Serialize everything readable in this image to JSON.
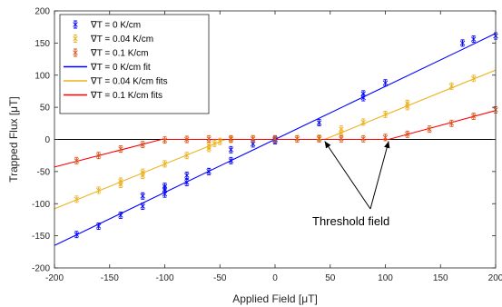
{
  "chart_data": {
    "type": "scatter",
    "xlabel": "Applied Field [μT]",
    "ylabel": "Trapped Flux [μT]",
    "xlim": [
      -200,
      200
    ],
    "ylim": [
      -200,
      200
    ],
    "xticks": [
      -200,
      -150,
      -100,
      -50,
      0,
      50,
      100,
      150,
      200
    ],
    "yticks": [
      -200,
      -150,
      -100,
      -50,
      0,
      50,
      100,
      150,
      200
    ],
    "grid": false,
    "legend_position": "top-left",
    "zero_line": true,
    "series": [
      {
        "name": "∇T = 0 K/cm",
        "kind": "points",
        "color": "#0000ff",
        "points": [
          [
            -180,
            -148
          ],
          [
            -160,
            -135
          ],
          [
            -140,
            -118
          ],
          [
            -120,
            -104
          ],
          [
            -120,
            -88
          ],
          [
            -100,
            -85
          ],
          [
            -100,
            -78
          ],
          [
            -100,
            -73
          ],
          [
            -80,
            -67
          ],
          [
            -80,
            -56
          ],
          [
            -60,
            -50
          ],
          [
            -40,
            -33
          ],
          [
            -40,
            -16
          ],
          [
            -20,
            -7
          ],
          [
            0,
            -2
          ],
          [
            0,
            0
          ],
          [
            40,
            26
          ],
          [
            80,
            65
          ],
          [
            80,
            71
          ],
          [
            100,
            88
          ],
          [
            170,
            150
          ],
          [
            180,
            156
          ],
          [
            200,
            161
          ]
        ]
      },
      {
        "name": "∇T = 0.04 K/cm",
        "kind": "points",
        "color": "#edb120",
        "points": [
          [
            -180,
            -93
          ],
          [
            -160,
            -79
          ],
          [
            -140,
            -70
          ],
          [
            -140,
            -65
          ],
          [
            -120,
            -56
          ],
          [
            -120,
            -51
          ],
          [
            -100,
            -38
          ],
          [
            -80,
            -25
          ],
          [
            -60,
            -14
          ],
          [
            -60,
            -9
          ],
          [
            -55,
            -6
          ],
          [
            -50,
            -3
          ],
          [
            -40,
            0
          ],
          [
            -20,
            1
          ],
          [
            0,
            1
          ],
          [
            20,
            1
          ],
          [
            40,
            2
          ],
          [
            60,
            10
          ],
          [
            60,
            16
          ],
          [
            80,
            27
          ],
          [
            100,
            39
          ],
          [
            120,
            51
          ],
          [
            120,
            56
          ],
          [
            160,
            83
          ],
          [
            180,
            95
          ]
        ]
      },
      {
        "name": "∇T = 0.1 K/cm",
        "kind": "points",
        "color": "#d95319",
        "points": [
          [
            -180,
            -33
          ],
          [
            -160,
            -25
          ],
          [
            -140,
            -15
          ],
          [
            -120,
            -8
          ],
          [
            -100,
            -1
          ],
          [
            -80,
            0
          ],
          [
            -60,
            1
          ],
          [
            -40,
            1
          ],
          [
            -20,
            1
          ],
          [
            0,
            1
          ],
          [
            20,
            1
          ],
          [
            40,
            1
          ],
          [
            60,
            1
          ],
          [
            80,
            1
          ],
          [
            100,
            3
          ],
          [
            120,
            8
          ],
          [
            140,
            16
          ],
          [
            160,
            25
          ],
          [
            180,
            36
          ],
          [
            200,
            46
          ]
        ]
      },
      {
        "name": "∇T = 0 K/cm fit",
        "kind": "line",
        "color": "#0000ff",
        "points": [
          [
            -200,
            -165
          ],
          [
            200,
            165
          ]
        ]
      },
      {
        "name": "∇T = 0.04 K/cm fits",
        "kind": "line",
        "color": "#edb120",
        "points": [
          [
            -200,
            -108
          ],
          [
            -45,
            0
          ],
          [
            45,
            0
          ],
          [
            200,
            108
          ]
        ]
      },
      {
        "name": "∇T = 0.1 K/cm fits",
        "kind": "line",
        "color": "#ff0000",
        "points": [
          [
            -200,
            -43
          ],
          [
            -103,
            0
          ],
          [
            103,
            0
          ],
          [
            200,
            45
          ]
        ]
      }
    ],
    "annotations": [
      {
        "text": "Threshold field",
        "arrow_targets": [
          [
            45,
            0
          ],
          [
            103,
            0
          ]
        ]
      }
    ]
  }
}
